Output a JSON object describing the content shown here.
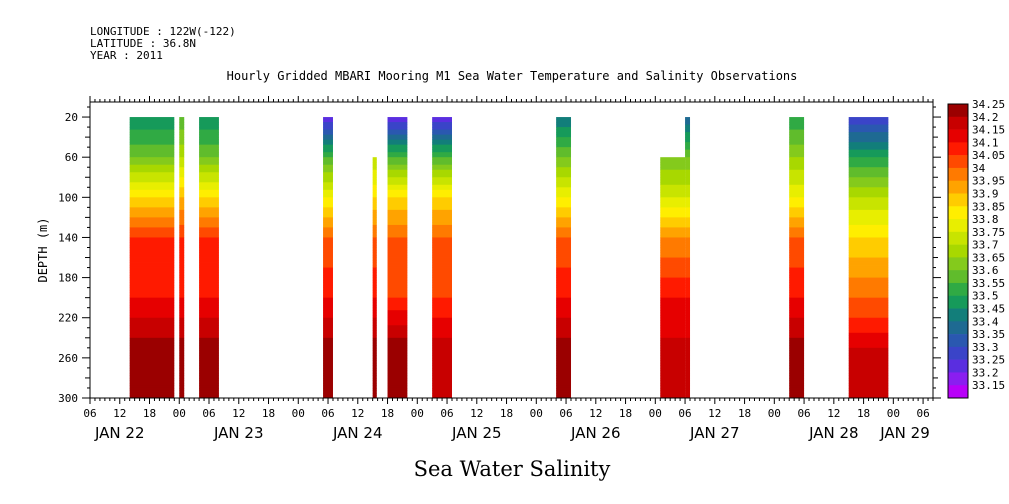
{
  "header": {
    "longitude": "LONGITUDE : 122W(-122)",
    "latitude": "LATITUDE : 36.8N",
    "year": "YEAR : 2011"
  },
  "chart_data": {
    "type": "heatmap",
    "title": "Hourly Gridded MBARI Mooring M1 Sea Water Temperature and Salinity Observations",
    "xlabel": "Sea Water Salinity",
    "ylabel": "DEPTH (m)",
    "x_start": "2011-01-22T06:00",
    "x_end": "2011-01-29T08:00",
    "ylim": [
      300,
      5
    ],
    "y_ticks": [
      20,
      60,
      100,
      140,
      180,
      220,
      260,
      300
    ],
    "x_hour_ticks": [
      "06",
      "12",
      "18",
      "00",
      "06",
      "12",
      "18",
      "00",
      "06",
      "12",
      "18",
      "00",
      "06",
      "12",
      "18",
      "00",
      "06",
      "12",
      "18",
      "00",
      "06",
      "12",
      "18",
      "00",
      "06",
      "12",
      "18",
      "00",
      "06",
      "12",
      "18",
      "00",
      "06"
    ],
    "x_day_labels": [
      "JAN 22",
      "JAN 23",
      "JAN 24",
      "JAN 25",
      "JAN 26",
      "JAN 27",
      "JAN 28",
      "JAN 29"
    ],
    "colorbar": {
      "levels": [
        "34.25",
        "34.2",
        "34.15",
        "34.1",
        "34.05",
        "34",
        "33.95",
        "33.9",
        "33.85",
        "33.8",
        "33.75",
        "33.7",
        "33.65",
        "33.6",
        "33.55",
        "33.5",
        "33.45",
        "33.4",
        "33.35",
        "33.3",
        "33.25",
        "33.2",
        "33.15"
      ],
      "colors": [
        "#9b0000",
        "#c80000",
        "#e60000",
        "#ff1a00",
        "#ff4a00",
        "#ff7a00",
        "#ffa300",
        "#ffcc00",
        "#ffee00",
        "#e8ee00",
        "#c8e400",
        "#a8d800",
        "#84ca1c",
        "#60bc2c",
        "#30aa44",
        "#169a5a",
        "#127e7a",
        "#1e6a92",
        "#2a58b0",
        "#3a44c8",
        "#5a2ee0",
        "#8a1ef0",
        "#b800f8"
      ]
    },
    "segments": [
      {
        "start": "2011-01-22T14:00",
        "end": "2011-01-22T23:00",
        "top_depth": 20,
        "profile": [
          [
            20,
            33.45
          ],
          [
            60,
            33.6
          ],
          [
            100,
            33.85
          ],
          [
            140,
            34.05
          ],
          [
            200,
            34.1
          ],
          [
            240,
            34.2
          ],
          [
            300,
            34.25
          ]
        ]
      },
      {
        "start": "2011-01-23T00:00",
        "end": "2011-01-23T01:00",
        "top_depth": 20,
        "profile": [
          [
            20,
            33.55
          ],
          [
            60,
            33.7
          ],
          [
            100,
            33.9
          ],
          [
            140,
            34.05
          ],
          [
            200,
            34.1
          ],
          [
            240,
            34.2
          ],
          [
            300,
            34.2
          ]
        ]
      },
      {
        "start": "2011-01-23T04:00",
        "end": "2011-01-23T08:00",
        "top_depth": 20,
        "profile": [
          [
            20,
            33.45
          ],
          [
            60,
            33.6
          ],
          [
            100,
            33.85
          ],
          [
            140,
            34.05
          ],
          [
            200,
            34.1
          ],
          [
            240,
            34.2
          ],
          [
            300,
            34.2
          ]
        ]
      },
      {
        "start": "2011-01-24T05:00",
        "end": "2011-01-24T07:00",
        "top_depth": 20,
        "profile": [
          [
            20,
            33.2
          ],
          [
            60,
            33.55
          ],
          [
            100,
            33.8
          ],
          [
            140,
            34.0
          ],
          [
            200,
            34.1
          ],
          [
            240,
            34.2
          ],
          [
            300,
            34.2
          ]
        ]
      },
      {
        "start": "2011-01-24T15:00",
        "end": "2011-01-24T15:50",
        "top_depth": 60,
        "profile": [
          [
            60,
            33.7
          ],
          [
            100,
            33.85
          ],
          [
            140,
            34.0
          ],
          [
            200,
            34.1
          ],
          [
            240,
            34.2
          ],
          [
            300,
            34.2
          ]
        ]
      },
      {
        "start": "2011-01-24T18:00",
        "end": "2011-01-24T22:00",
        "top_depth": 20,
        "profile": [
          [
            20,
            33.2
          ],
          [
            60,
            33.55
          ],
          [
            100,
            33.85
          ],
          [
            140,
            34.0
          ],
          [
            200,
            34.05
          ],
          [
            240,
            34.2
          ],
          [
            300,
            34.2
          ]
        ]
      },
      {
        "start": "2011-01-25T03:00",
        "end": "2011-01-25T07:00",
        "top_depth": 20,
        "profile": [
          [
            20,
            33.2
          ],
          [
            60,
            33.55
          ],
          [
            100,
            33.85
          ],
          [
            140,
            34.0
          ],
          [
            200,
            34.05
          ],
          [
            240,
            34.15
          ],
          [
            300,
            34.15
          ]
        ]
      },
      {
        "start": "2011-01-26T04:00",
        "end": "2011-01-26T07:00",
        "top_depth": 20,
        "profile": [
          [
            20,
            33.4
          ],
          [
            60,
            33.6
          ],
          [
            100,
            33.8
          ],
          [
            140,
            34.0
          ],
          [
            200,
            34.1
          ],
          [
            240,
            34.2
          ],
          [
            300,
            34.2
          ]
        ]
      },
      {
        "start": "2011-01-27T01:00",
        "end": "2011-01-27T06:00",
        "top_depth": 60,
        "profile": [
          [
            60,
            33.6
          ],
          [
            100,
            33.75
          ],
          [
            140,
            33.95
          ],
          [
            200,
            34.1
          ],
          [
            240,
            34.15
          ],
          [
            300,
            34.15
          ]
        ]
      },
      {
        "start": "2011-01-27T06:00",
        "end": "2011-01-27T07:00",
        "top_depth": 20,
        "profile": [
          [
            20,
            33.35
          ],
          [
            60,
            33.6
          ],
          [
            100,
            33.75
          ],
          [
            140,
            33.95
          ],
          [
            200,
            34.1
          ],
          [
            240,
            34.15
          ],
          [
            300,
            34.15
          ]
        ]
      },
      {
        "start": "2011-01-28T03:00",
        "end": "2011-01-28T06:00",
        "top_depth": 20,
        "profile": [
          [
            20,
            33.5
          ],
          [
            60,
            33.65
          ],
          [
            100,
            33.8
          ],
          [
            140,
            34.0
          ],
          [
            200,
            34.1
          ],
          [
            240,
            34.2
          ],
          [
            300,
            34.2
          ]
        ]
      },
      {
        "start": "2011-01-28T15:00",
        "end": "2011-01-28T23:00",
        "top_depth": 20,
        "profile": [
          [
            20,
            33.25
          ],
          [
            60,
            33.5
          ],
          [
            100,
            33.7
          ],
          [
            140,
            33.85
          ],
          [
            180,
            33.95
          ],
          [
            220,
            34.05
          ],
          [
            250,
            34.15
          ],
          [
            300,
            34.15
          ]
        ]
      }
    ]
  }
}
